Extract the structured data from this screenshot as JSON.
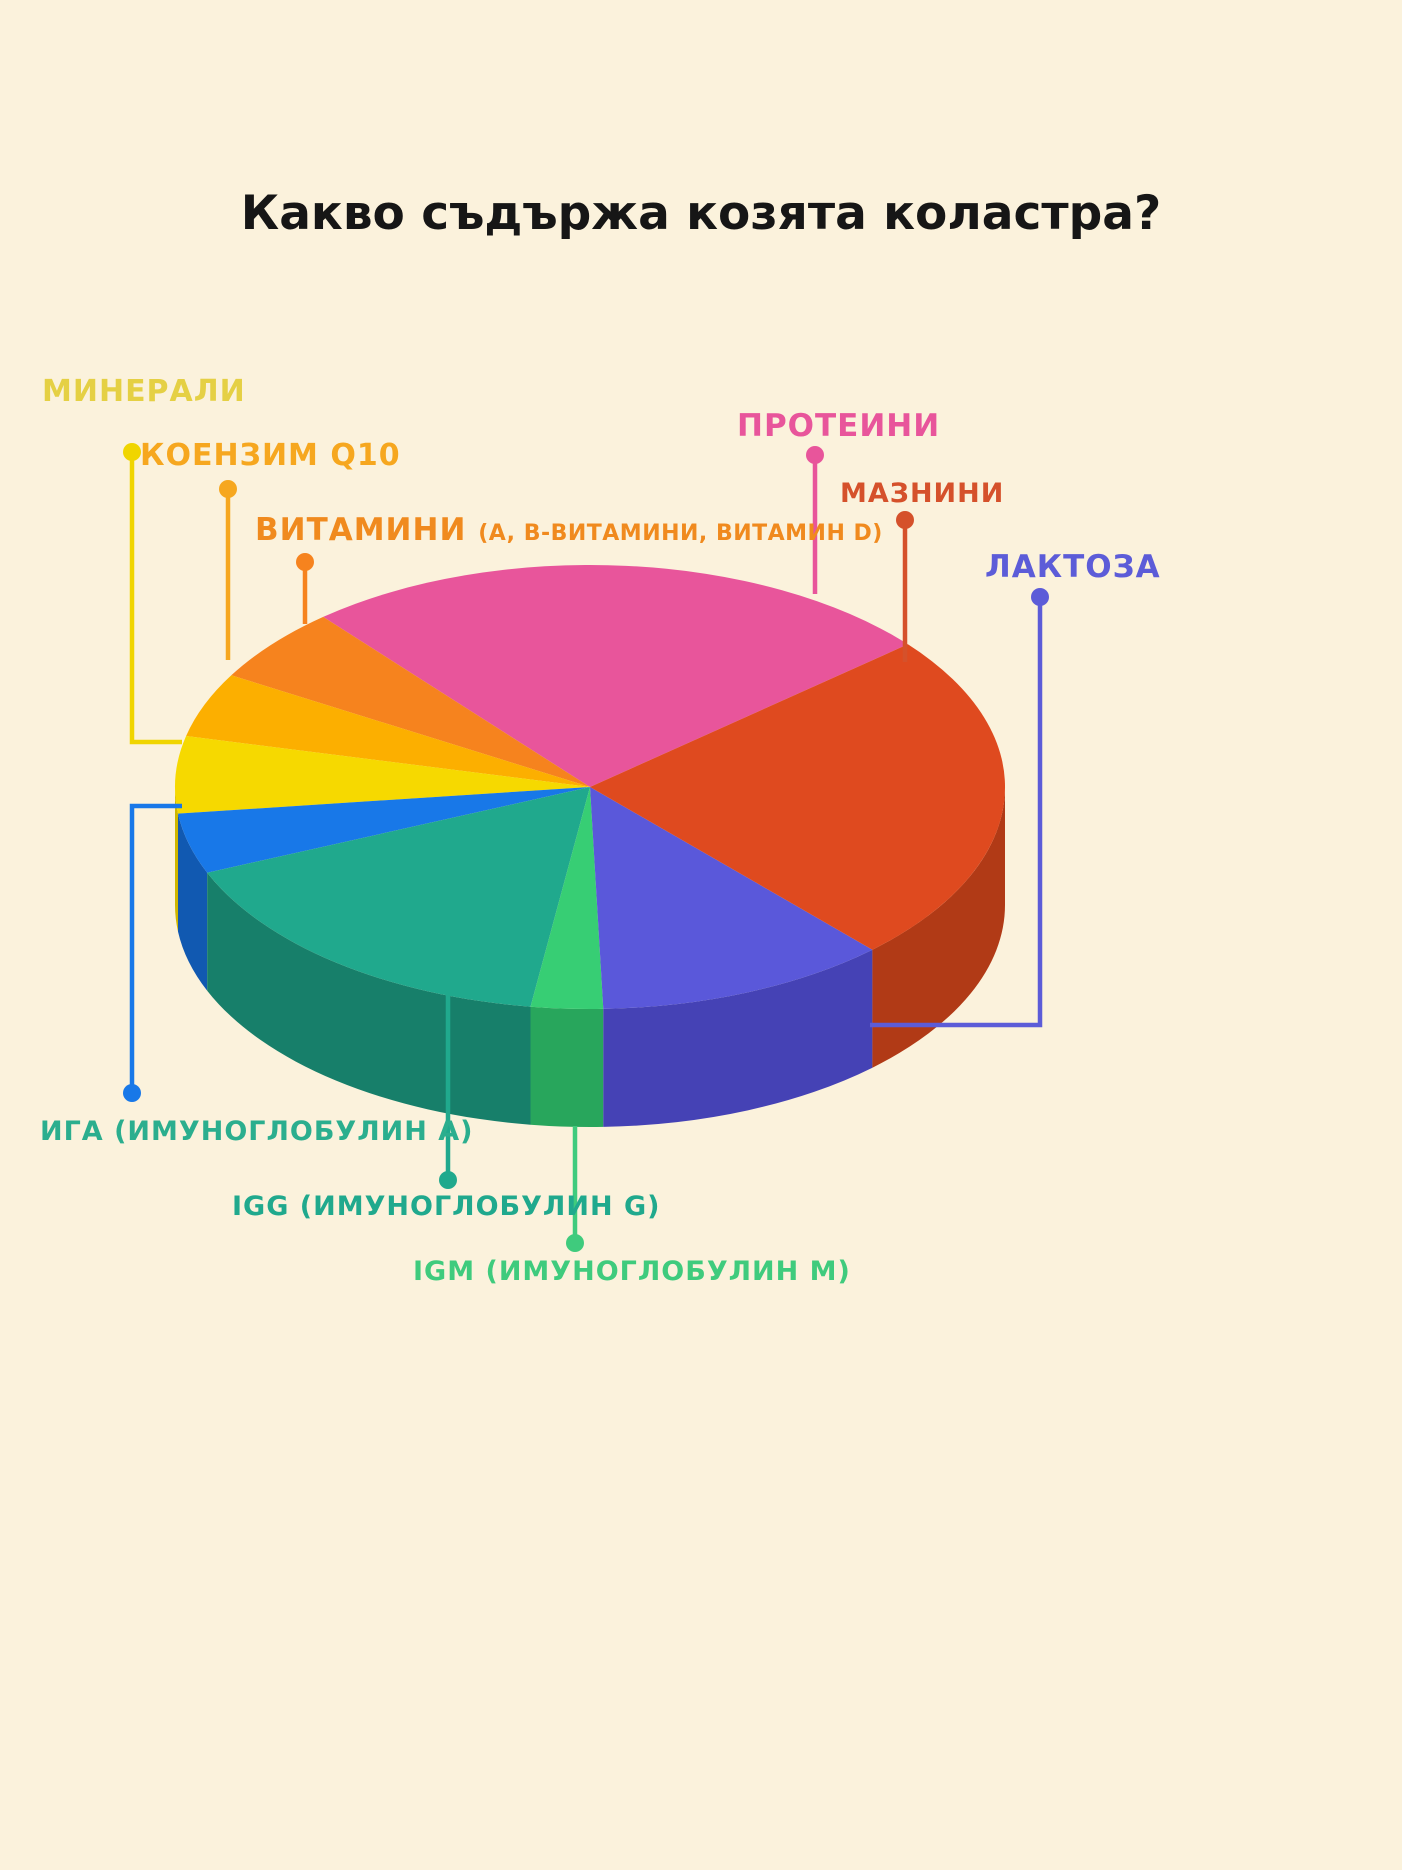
{
  "title": "Какво съдържа козята коластра?",
  "page": {
    "background": "#FBF2DC"
  },
  "chart_data": {
    "type": "pie",
    "style": "3d",
    "title": "Какво съдържа козята коластра?",
    "note": "No numeric data labels shown in the figure; percentages estimated from slice angles",
    "start_angle_deg": 40,
    "direction": "counterclockwise",
    "legend_position": "callout-labels-around-pie",
    "slices": [
      {
        "id": "proteini",
        "name": "ПРОТЕИНИ",
        "value_pct": 25.0,
        "color": "#E8559B",
        "side_color": "#C64382",
        "label_color": "#E8559B",
        "line_color": "#E8559B",
        "parts": {
          "main": "ПРОТЕИНИ"
        }
      },
      {
        "id": "vitamini",
        "name": "ВИТАМИНИ (A, B-ВИТАМИНИ, ВИТАМИН D)",
        "value_pct": 5.5,
        "color": "#F6831E",
        "side_color": "#D66C0C",
        "label_color": "#F08A1E",
        "line_color": "#F6831E",
        "parts": {
          "main": "ВИТАМИНИ ",
          "detail": "(A, B-ВИТАМИНИ, ВИТАМИН D)"
        }
      },
      {
        "id": "koenzim",
        "name": "КОЕНЗИМ Q10",
        "value_pct": 4.7,
        "color": "#FCAF00",
        "side_color": "#D69300",
        "label_color": "#F6A71F",
        "line_color": "#F6A71F",
        "parts": {
          "main": "КОЕНЗИМ ",
          "suffix_bold": "Q10"
        }
      },
      {
        "id": "minerali",
        "name": "МИНЕРАЛИ",
        "value_pct": 5.6,
        "color": "#F6D900",
        "side_color": "#CFB700",
        "label_color": "#E5D044",
        "line_color": "#F0D500",
        "parts": {
          "main": "МИНЕРАЛИ"
        }
      },
      {
        "id": "iga",
        "name": "ИГА (ИМУНОГЛОБУЛИН А)",
        "value_pct": 4.4,
        "color": "#1878E8",
        "side_color": "#1159B1",
        "label_color": "#2BAE8E",
        "line_color": "#1878E8",
        "parts": {
          "main": "ИГА (ИМУНОГЛОБУЛИН А)"
        }
      },
      {
        "id": "igg",
        "name": "IGG (ИМУНОГЛОБУЛИН G)",
        "value_pct": 16.4,
        "color": "#20A98D",
        "side_color": "#177F6A",
        "label_color": "#20A98D",
        "line_color": "#20A98D",
        "parts": {
          "prefix_bold": "IGG ",
          "main": "(ИМУНОГЛОБУЛИН G)"
        }
      },
      {
        "id": "igm",
        "name": "IGM (ИМУНОГЛОБУЛИН М)",
        "value_pct": 2.8,
        "color": "#37CE74",
        "side_color": "#28A65C",
        "label_color": "#3FCB7D",
        "line_color": "#3FCB7D",
        "parts": {
          "prefix_bold": "IGM ",
          "main": "(ИМУНОГЛОБУЛИН М)"
        }
      },
      {
        "id": "laktoza",
        "name": "ЛАКТОЗА",
        "value_pct": 11.4,
        "color": "#5A58DA",
        "side_color": "#4542B5",
        "label_color": "#5C5CD8",
        "line_color": "#5C5CD8",
        "parts": {
          "main": "ЛАКТОЗА"
        }
      },
      {
        "id": "maznini",
        "name": "МАЗНИНИ",
        "value_pct": 24.2,
        "color": "#DF4A1F",
        "side_color": "#B13A16",
        "label_color": "#D5512B",
        "line_color": "#D5512B",
        "parts": {
          "main": "МАЗНИНИ"
        }
      }
    ]
  }
}
